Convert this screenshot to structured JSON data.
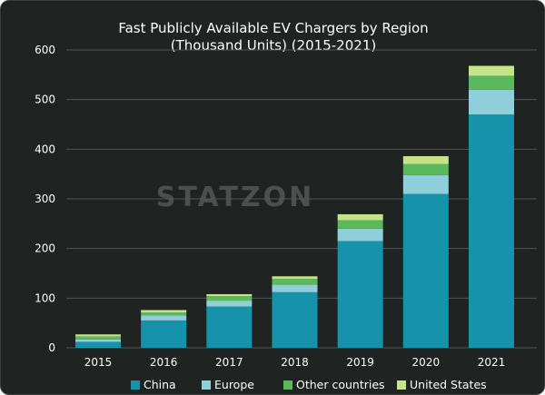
{
  "chart_data": {
    "type": "bar",
    "stacked": true,
    "title": [
      "Fast Publicly Available EV Chargers by Region",
      "(Thousand Units) (2015-2021)"
    ],
    "categories": [
      "2015",
      "2016",
      "2017",
      "2018",
      "2019",
      "2020",
      "2021"
    ],
    "series": [
      {
        "name": "China",
        "values": [
          12,
          55,
          83,
          112,
          215,
          310,
          470
        ],
        "color": "#1692aa"
      },
      {
        "name": "Europe",
        "values": [
          5,
          10,
          12,
          15,
          25,
          38,
          50
        ],
        "color": "#8fcfdc"
      },
      {
        "name": "Other countries",
        "values": [
          6,
          6,
          9,
          12,
          17,
          22,
          28
        ],
        "color": "#5cb85c"
      },
      {
        "name": "United States",
        "values": [
          4,
          5,
          4,
          5,
          12,
          16,
          20
        ],
        "color": "#c5e48a"
      }
    ],
    "yticks": [
      0,
      100,
      200,
      300,
      400,
      500,
      600
    ],
    "ylim": [
      0,
      600
    ],
    "xlabel": "",
    "ylabel": "",
    "legend_position": "bottom",
    "grid": true
  },
  "watermark": "STATZON"
}
